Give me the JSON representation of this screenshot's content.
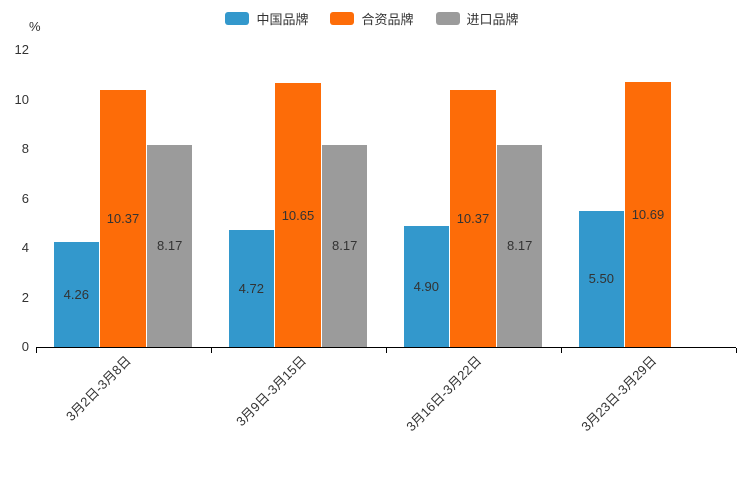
{
  "chart_data": {
    "type": "bar",
    "categories": [
      "3月2日-3月8日",
      "3月9日-3月15日",
      "3月16日-3月22日",
      "3月23日-3月29日"
    ],
    "series": [
      {
        "name": "中国品牌",
        "color": "#3398cc",
        "values": [
          4.26,
          4.72,
          4.9,
          5.5
        ]
      },
      {
        "name": "合资品牌",
        "color": "#fd6c08",
        "values": [
          10.37,
          10.65,
          10.37,
          10.69
        ]
      },
      {
        "name": "进口品牌",
        "color": "#9b9b9b",
        "values": [
          8.17,
          8.17,
          8.17,
          null
        ]
      }
    ],
    "ylabel": "%",
    "xlabel": "",
    "title": "",
    "y_ticks": [
      0,
      2,
      4,
      6,
      8,
      10,
      12
    ],
    "ylim": [
      0,
      12
    ],
    "grid": false,
    "legend_position": "top",
    "value_label_position": "inside-center",
    "value_label_decimals": 2,
    "axis_color": "#000000",
    "text_color": "#333333",
    "background_color": "#ffffff"
  }
}
